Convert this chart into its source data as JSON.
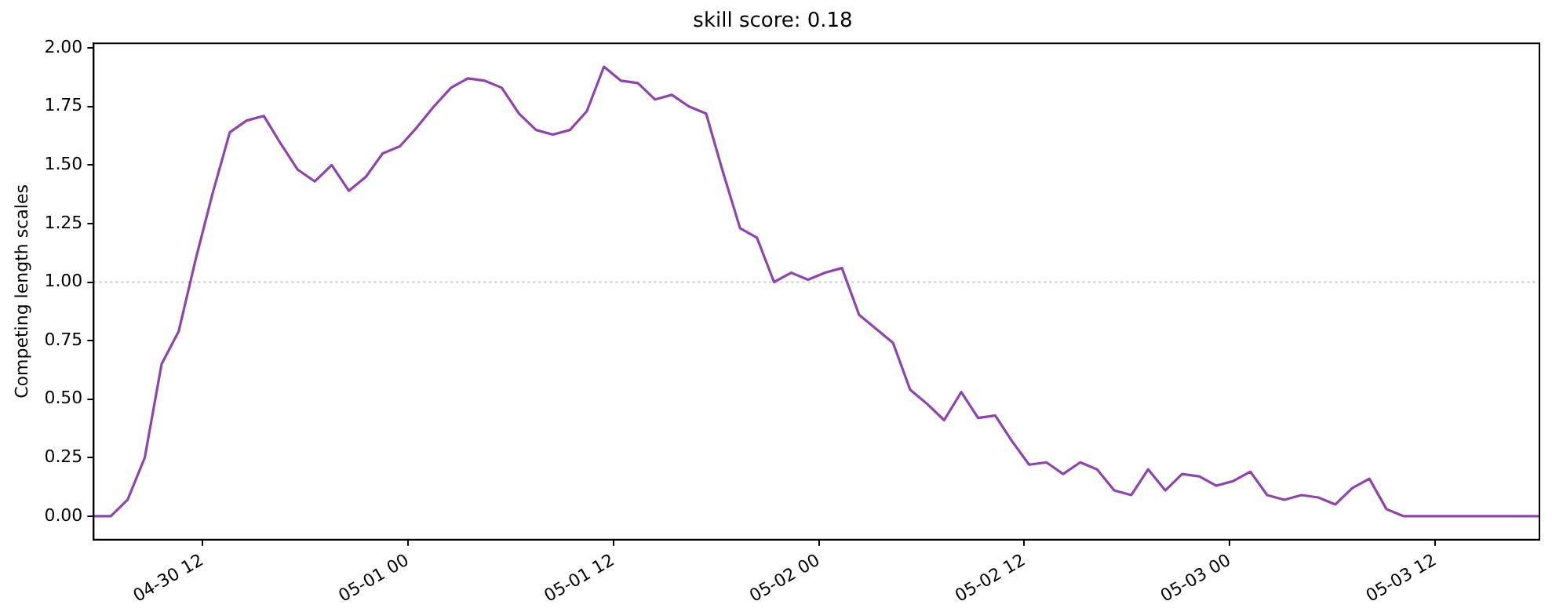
{
  "chart_data": {
    "type": "line",
    "title": "skill score: 0.18",
    "ylabel": "Competing length scales",
    "x": [
      "--04-30T05:39",
      "--04-30T06:39",
      "--04-30T07:38",
      "--04-30T08:38",
      "--04-30T09:37",
      "--04-30T10:37",
      "--04-30T11:37",
      "--04-30T12:36",
      "--04-30T13:36",
      "--04-30T14:35",
      "--04-30T15:35",
      "--04-30T16:35",
      "--04-30T17:34",
      "--04-30T18:34",
      "--04-30T19:33",
      "--04-30T20:33",
      "--04-30T21:33",
      "--04-30T22:32",
      "--04-30T23:32",
      "--05-01T00:31",
      "--05-01T01:31",
      "--05-01T02:31",
      "--05-01T03:30",
      "--05-01T04:30",
      "--05-01T05:29",
      "--05-01T06:29",
      "--05-01T07:29",
      "--05-01T08:28",
      "--05-01T09:28",
      "--05-01T10:27",
      "--05-01T11:27",
      "--05-01T12:27",
      "--05-01T13:26",
      "--05-01T14:26",
      "--05-01T15:25",
      "--05-01T16:25",
      "--05-01T17:25",
      "--05-01T18:24",
      "--05-01T19:24",
      "--05-01T20:23",
      "--05-01T21:23",
      "--05-01T22:23",
      "--05-01T23:22",
      "--05-02T00:22",
      "--05-02T01:21",
      "--05-02T02:21",
      "--05-02T03:21",
      "--05-02T04:20",
      "--05-02T05:20",
      "--05-02T06:19",
      "--05-02T07:19",
      "--05-02T08:19",
      "--05-02T09:18",
      "--05-02T10:18",
      "--05-02T11:17",
      "--05-02T12:17",
      "--05-02T13:17",
      "--05-02T14:16",
      "--05-02T15:16",
      "--05-02T16:15",
      "--05-02T17:15",
      "--05-02T18:15",
      "--05-02T19:14",
      "--05-02T20:14",
      "--05-02T21:13",
      "--05-02T22:13",
      "--05-02T23:13",
      "--05-03T00:12",
      "--05-03T01:12",
      "--05-03T02:11",
      "--05-03T03:11",
      "--05-03T04:11",
      "--05-03T05:10",
      "--05-03T06:10",
      "--05-03T07:09",
      "--05-03T08:09",
      "--05-03T09:09",
      "--05-03T10:08",
      "--05-03T11:08",
      "--05-03T12:07",
      "--05-03T13:07",
      "--05-03T14:07",
      "--05-03T15:06",
      "--05-03T16:06",
      "--05-03T17:05",
      "--05-03T18:05"
    ],
    "series": [
      {
        "color": "#8e44ad",
        "values": [
          0,
          0,
          0.07,
          0.25,
          0.65,
          0.79,
          1.1,
          1.38,
          1.64,
          1.69,
          1.71,
          1.59,
          1.48,
          1.43,
          1.5,
          1.39,
          1.45,
          1.55,
          1.58,
          1.66,
          1.75,
          1.83,
          1.87,
          1.86,
          1.83,
          1.72,
          1.65,
          1.63,
          1.65,
          1.73,
          1.92,
          1.86,
          1.85,
          1.78,
          1.8,
          1.75,
          1.72,
          1.47,
          1.23,
          1.19,
          1.0,
          1.04,
          1.01,
          1.04,
          1.06,
          0.86,
          0.8,
          0.74,
          0.54,
          0.48,
          0.41,
          0.53,
          0.42,
          0.43,
          0.32,
          0.22,
          0.23,
          0.18,
          0.23,
          0.2,
          0.11,
          0.09,
          0.2,
          0.11,
          0.18,
          0.17,
          0.13,
          0.15,
          0.19,
          0.09,
          0.07,
          0.09,
          0.08,
          0.05,
          0.12,
          0.16,
          0.03,
          0,
          0,
          0,
          0,
          0,
          0,
          0,
          0,
          0
        ]
      }
    ],
    "xlim": [
      "--04-30T05:39",
      "--05-03T18:05"
    ],
    "xticks": [
      {
        "value": "--04-30T12:00",
        "label": "04-30 12"
      },
      {
        "value": "--05-01T00:00",
        "label": "05-01 00"
      },
      {
        "value": "--05-01T12:00",
        "label": "05-01 12"
      },
      {
        "value": "--05-02T00:00",
        "label": "05-02 00"
      },
      {
        "value": "--05-02T12:00",
        "label": "05-02 12"
      },
      {
        "value": "--05-03T00:00",
        "label": "05-03 00"
      },
      {
        "value": "--05-03T12:00",
        "label": "05-03 12"
      }
    ],
    "ylim": [
      -0.1,
      2.02
    ],
    "yticks": [
      {
        "value": 0,
        "label": "0.00"
      },
      {
        "value": 0.25,
        "label": "0.25"
      },
      {
        "value": 0.5,
        "label": "0.50"
      },
      {
        "value": 0.75,
        "label": "0.75"
      },
      {
        "value": 1,
        "label": "1.00"
      },
      {
        "value": 1.25,
        "label": "1.25"
      },
      {
        "value": 1.5,
        "label": "1.50"
      },
      {
        "value": 1.75,
        "label": "1.75"
      },
      {
        "value": 2,
        "label": "2.00"
      }
    ],
    "ref_lines": [
      {
        "axis": "y",
        "value": 1,
        "color": "#c8c8c8",
        "line_style": "dotted"
      }
    ],
    "grid": false,
    "legend": false,
    "marker": "none",
    "line_style": "solid"
  }
}
